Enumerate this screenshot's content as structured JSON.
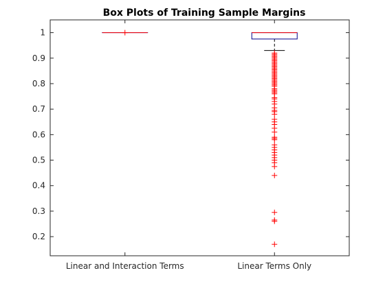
{
  "chart_data": {
    "type": "box",
    "title": "Box Plots of Training Sample Margins",
    "xlabel": "",
    "ylabel": "",
    "categories": [
      "Linear and Interaction Terms",
      "Linear Terms Only"
    ],
    "ylim": [
      0.125,
      1.05
    ],
    "yticks": [
      0.2,
      0.3,
      0.4,
      0.5,
      0.6,
      0.7,
      0.8,
      0.9,
      1
    ],
    "ytick_labels": [
      "0.2",
      "0.3",
      "0.4",
      "0.5",
      "0.6",
      "0.7",
      "0.8",
      "0.9",
      "1"
    ],
    "grid": false,
    "series": [
      {
        "category": "Linear and Interaction Terms",
        "whisker_low": 1.0,
        "q1": 1.0,
        "median": 1.0,
        "q3": 1.0,
        "whisker_high": 1.0,
        "outliers": [
          1.0
        ]
      },
      {
        "category": "Linear Terms Only",
        "whisker_low": 0.93,
        "q1": 0.975,
        "median": 1.0,
        "q3": 1.0,
        "whisker_high": 1.0,
        "outliers": [
          0.92,
          0.915,
          0.91,
          0.905,
          0.9,
          0.895,
          0.89,
          0.885,
          0.88,
          0.875,
          0.87,
          0.865,
          0.86,
          0.855,
          0.85,
          0.845,
          0.84,
          0.835,
          0.83,
          0.825,
          0.82,
          0.815,
          0.81,
          0.805,
          0.8,
          0.795,
          0.79,
          0.78,
          0.775,
          0.77,
          0.765,
          0.76,
          0.745,
          0.74,
          0.73,
          0.72,
          0.705,
          0.695,
          0.69,
          0.68,
          0.66,
          0.65,
          0.64,
          0.625,
          0.61,
          0.59,
          0.585,
          0.58,
          0.56,
          0.55,
          0.54,
          0.53,
          0.52,
          0.51,
          0.5,
          0.49,
          0.475,
          0.44,
          0.295,
          0.265,
          0.26,
          0.17
        ]
      }
    ],
    "colors": {
      "box": "#00008B",
      "median": "#FF0000",
      "whisker": "#000000",
      "outlier": "#FF0000",
      "axis": "#262626"
    }
  }
}
